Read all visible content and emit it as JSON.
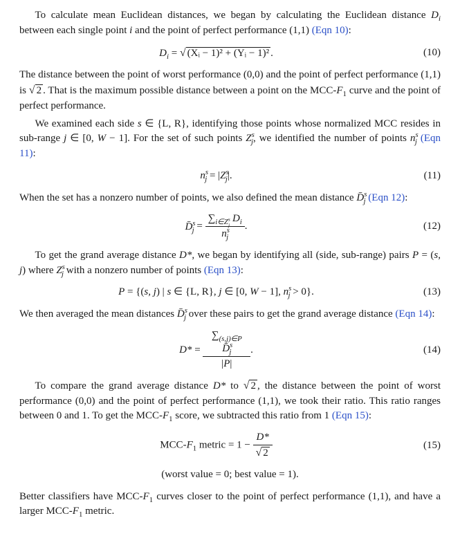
{
  "p1": "To calculate mean Euclidean distances, we began by calculating the Euclidean distance ",
  "p1b": " between each single point ",
  "p1c": " and the point of perfect performance (1,1) ",
  "eqref10": "(Eqn 10)",
  "eq10_lhs": "D",
  "eq10_i": "i",
  "eq10_eq": " = ",
  "eq10_sqrt_inner": "(Xᵢ − 1)² + (Yᵢ − 1)²",
  "eq10_dot": ".",
  "eqnum10": "(10)",
  "p2a": "The distance between the point of worst performance (0,0) and the point of perfect performance (1,1) is ",
  "p2b": ". That is the maximum possible distance between a point on the MCC-",
  "p2c": " curve and the point of perfect performance.",
  "sqrt2": "2",
  "p3a": "We examined each side ",
  "p3b": " ∈ {L, R}, identifying those points whose normalized MCC resides in sub-range ",
  "p3c": " ∈ [0, ",
  "p3d": " − 1]. For the set of such points ",
  "p3e": ", we identified the number of points ",
  "eqref11": "(Eqn 11)",
  "s": "s",
  "j": "j",
  "W": "W",
  "Z": "Z",
  "n": "n",
  "p3colon": ":",
  "eq11_body": "n",
  "eq11_eq": " = |",
  "eq11_end": "|.",
  "eqnum11": "(11)",
  "p4a": "When the set has a nonzero number of points, we also defined the mean distance ",
  "eqref12": "(Eqn 12)",
  "Dbar": "D̄",
  "eq12_sum": "∑",
  "eq12_sumsub": "i∈Z",
  "eq12_Di": " D",
  "eq12_dot": ".",
  "eqnum12": "(12)",
  "p5a": "To get the grand average distance ",
  "Dstar": "D*",
  "p5b": ", we began by identifying all (side, sub-range) pairs ",
  "P": "P",
  "p5c": " = (",
  "p5d": ") where ",
  "p5e": " with a nonzero number of points ",
  "eqref13": "(Eqn 13)",
  "sj": "s, j",
  "eq13_body_a": " = {(",
  "eq13_body_b": ") | ",
  "eq13_body_c": " ∈ {L, R}, ",
  "eq13_body_d": " ∈ [0, ",
  "eq13_body_e": " − 1], ",
  "eq13_body_f": " > 0}.",
  "eqnum13": "(13)",
  "p6a": "We then averaged the mean distances ",
  "p6b": " over these pairs to get the grand average distance ",
  "eqref14": "(Eqn 14)",
  "eq14_sumsub": "(s,j)∈",
  "eq14_den_a": "|",
  "eq14_den_b": "|",
  "eq14_dot": ".",
  "eqnum14": "(14)",
  "p7a": "To compare the grand average distance ",
  "p7b": " to ",
  "p7c": ", the distance between the point of worst performance (0,0) and the point of perfect performance (1,1), we took their ratio. This ratio ranges between 0 and 1. To get the MCC-",
  "p7d": " score, we subtracted this ratio from 1 ",
  "eqref15": "(Eqn 15)",
  "eq15_lhs": "MCC-",
  "eq15_lhs2": " metric = 1 − ",
  "eqnum15": "(15)",
  "eq15_note": "(worst value = 0; best value = 1).",
  "p8a": "Better classifiers have MCC-",
  "p8b": " curves closer to the point of perfect performance (1,1), and have a larger MCC-",
  "p8c": " metric.",
  "F1": "F",
  "one": "1",
  "i": "i",
  "colon": ":",
  "comma_sp": ", "
}
